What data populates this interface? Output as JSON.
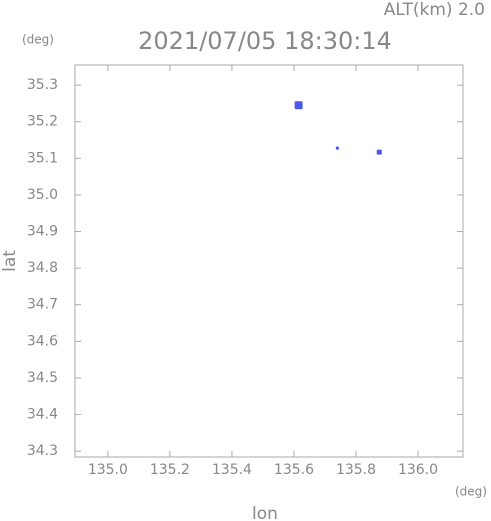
{
  "chart_data": {
    "type": "scatter",
    "title": "2021/07/05 18:30:14",
    "annotation": "ALT(km) 2.0",
    "y_unit": "(deg)",
    "x_unit": "(deg)",
    "xlabel": "lon",
    "ylabel": "lat",
    "series": [
      {
        "color": "#4a5ae8",
        "x": [
          135.615,
          135.74,
          135.875
        ],
        "values": [
          35.245,
          35.128,
          35.117
        ],
        "sizes": [
          8,
          3,
          5
        ]
      }
    ],
    "xlim": [
      134.894,
      136.145
    ],
    "ylim": [
      34.284,
      35.355
    ],
    "xticks": [
      {
        "value": 135.0,
        "label": "135.0"
      },
      135.2,
      135.4,
      135.6,
      135.8,
      {
        "value": 136.0,
        "label": "136.0"
      }
    ],
    "yticks": [
      34.3,
      34.4,
      34.5,
      34.6,
      34.7,
      34.8,
      34.9,
      {
        "value": 35.0,
        "label": "35.0"
      },
      35.1,
      35.2,
      35.3
    ]
  }
}
